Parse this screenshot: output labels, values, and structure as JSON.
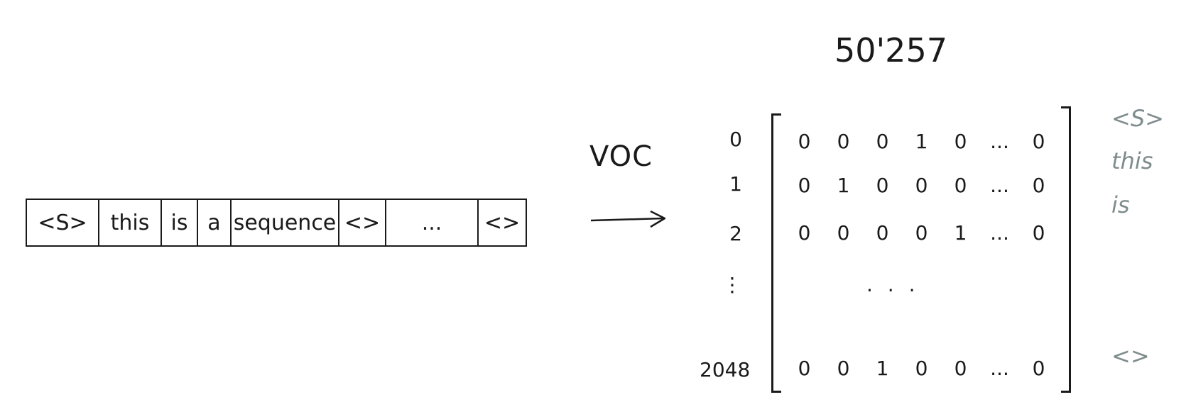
{
  "sequence": {
    "tokens": [
      "<S>",
      "this",
      "is",
      "a",
      "sequence",
      "<>",
      "...",
      "<>"
    ]
  },
  "arrow": {
    "label": "VOC"
  },
  "matrix": {
    "width_label": "50'257",
    "rows": [
      {
        "index": "0",
        "values": [
          "0",
          "0",
          "0",
          "1",
          "0",
          "...",
          "0"
        ]
      },
      {
        "index": "1",
        "values": [
          "0",
          "1",
          "0",
          "0",
          "0",
          "...",
          "0"
        ]
      },
      {
        "index": "2",
        "values": [
          "0",
          "0",
          "0",
          "0",
          "1",
          "...",
          "0"
        ]
      },
      {
        "index": "⋮",
        "values": []
      },
      {
        "index": "2048",
        "values": [
          "0",
          "0",
          "1",
          "0",
          "0",
          "...",
          "0"
        ]
      }
    ],
    "middle_ellipsis": ". . .",
    "row_tokens": [
      "<S>",
      "this",
      "is",
      "<>"
    ]
  }
}
